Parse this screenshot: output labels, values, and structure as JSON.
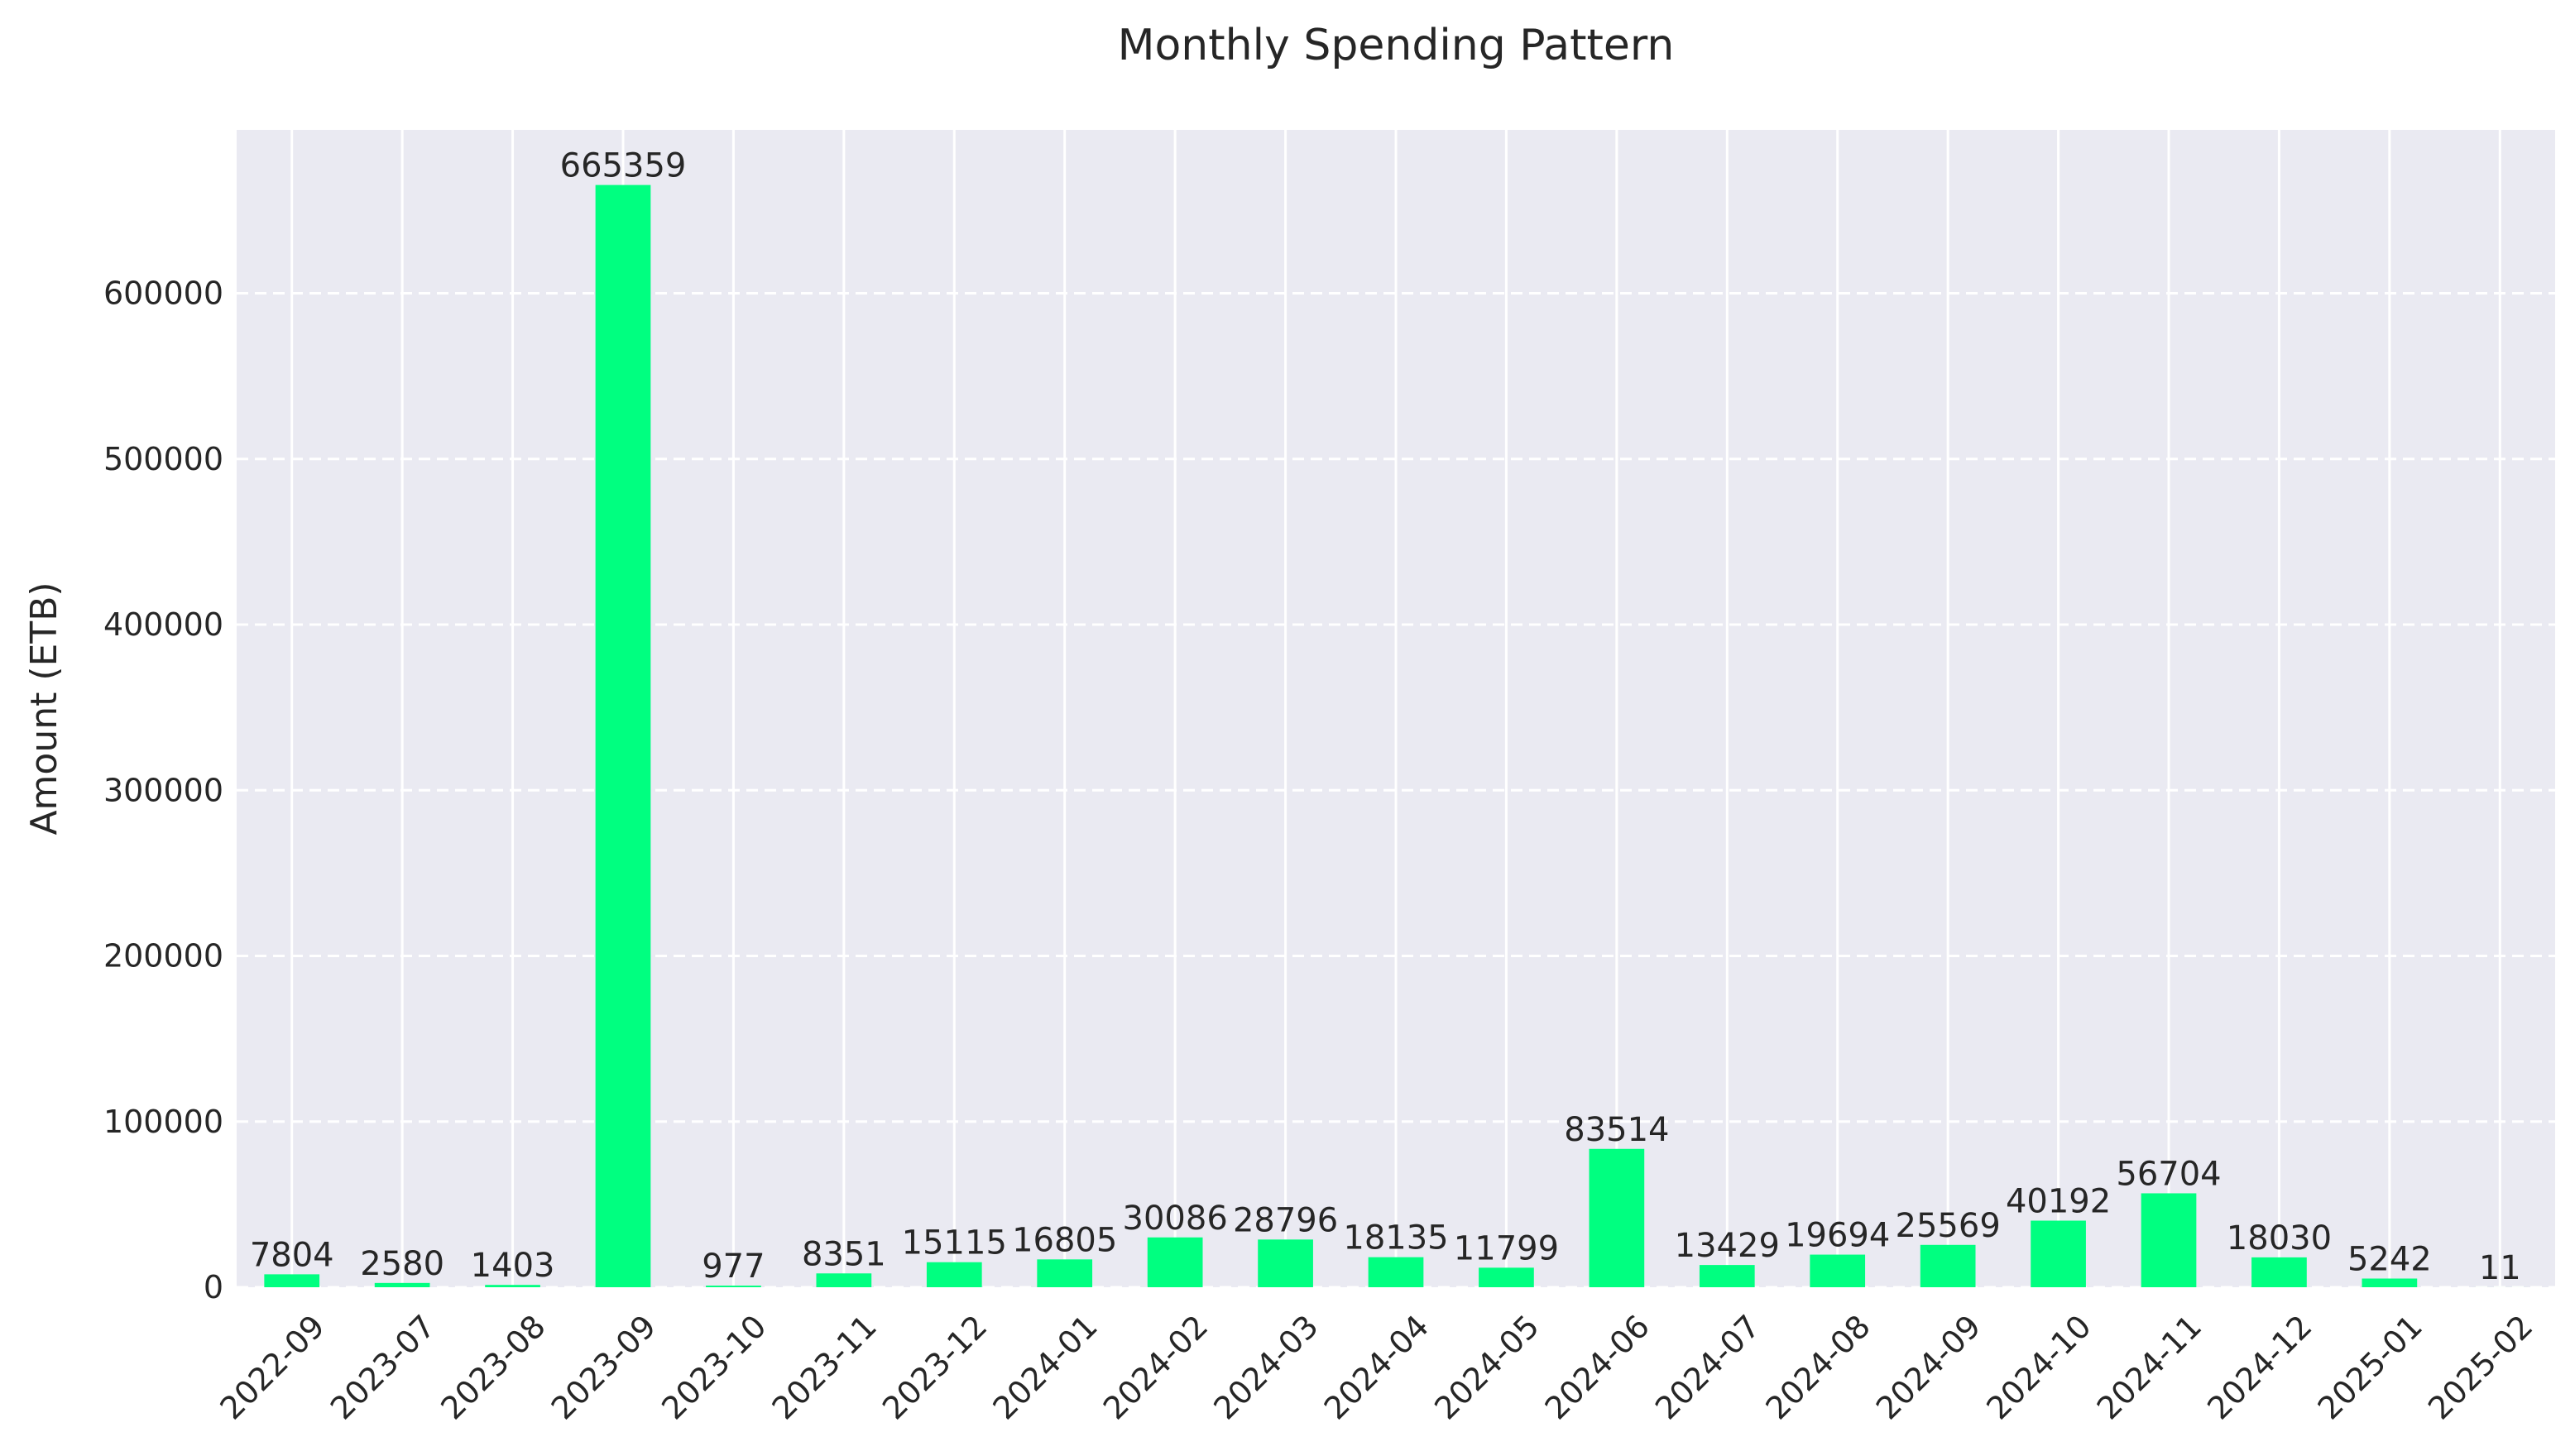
{
  "chart_data": {
    "type": "bar",
    "title": "Monthly Spending Pattern",
    "xlabel": "",
    "ylabel": "Amount (ETB)",
    "categories": [
      "2022-09",
      "2023-07",
      "2023-08",
      "2023-09",
      "2023-10",
      "2023-11",
      "2023-12",
      "2024-01",
      "2024-02",
      "2024-03",
      "2024-04",
      "2024-05",
      "2024-06",
      "2024-07",
      "2024-08",
      "2024-09",
      "2024-10",
      "2024-11",
      "2024-12",
      "2025-01",
      "2025-02"
    ],
    "values": [
      7804,
      2580,
      1403,
      665359,
      977,
      8351,
      15115,
      16805,
      30086,
      28796,
      18135,
      11799,
      83514,
      13429,
      19694,
      25569,
      40192,
      56704,
      18030,
      5242,
      11
    ],
    "ylim": [
      0,
      698627
    ],
    "yticks": [
      0,
      100000,
      200000,
      300000,
      400000,
      500000,
      600000
    ],
    "grid": true,
    "legend": "none",
    "colors": {
      "bar": "#00ff80",
      "plot_background": "#eaeaf2",
      "grid": "#ffffff"
    }
  }
}
